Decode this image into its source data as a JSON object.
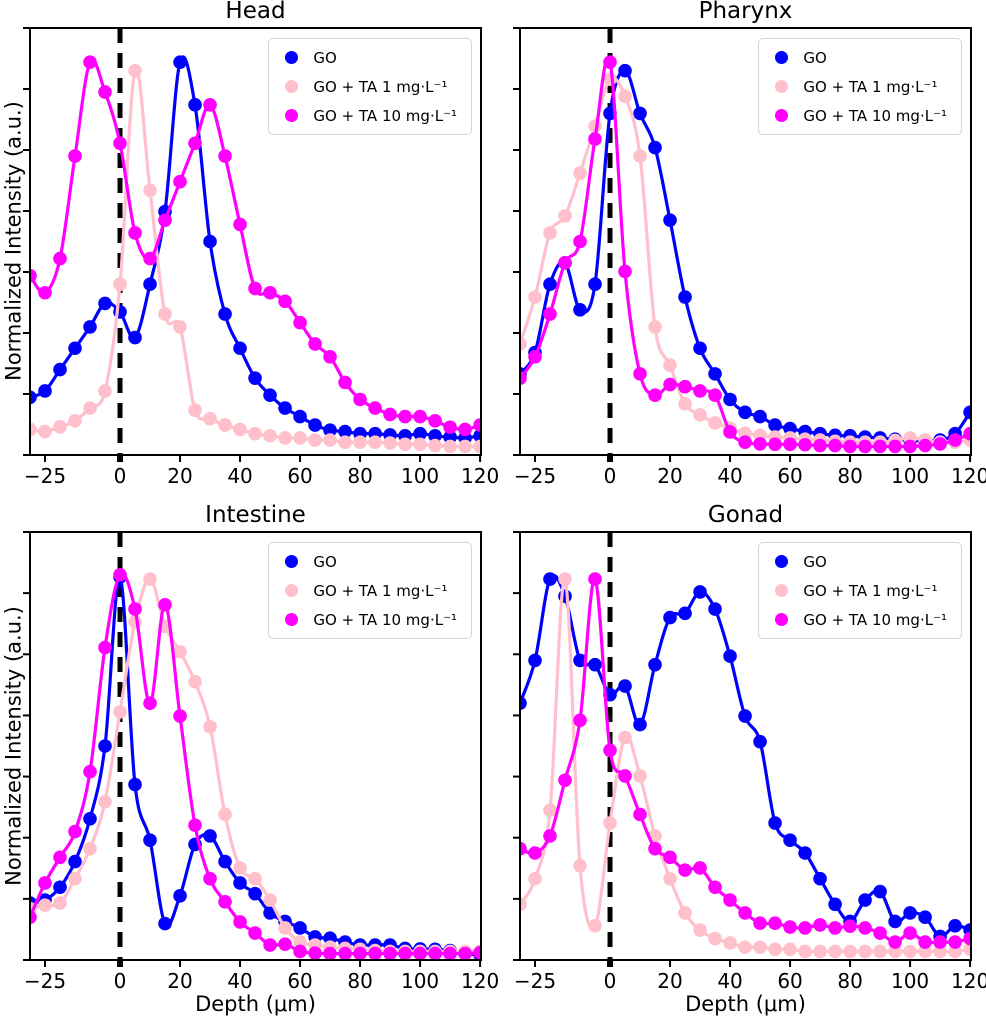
{
  "figure": {
    "description": "Four-panel depth profile figure",
    "background": "#ffffff"
  },
  "axes": {
    "xlabel": "Depth (μm)",
    "ylabel": "Normalized Intensity (a.u.)",
    "xlim": [
      -30,
      120.3
    ],
    "ylim": [
      0,
      1
    ],
    "x_ticks": [
      {
        "value": -25,
        "label": "−25"
      },
      {
        "value": 0,
        "label": "0"
      },
      {
        "value": 20,
        "label": "20"
      },
      {
        "value": 40,
        "label": "40"
      },
      {
        "value": 60,
        "label": "60"
      },
      {
        "value": 80,
        "label": "80"
      },
      {
        "value": 100,
        "label": "100"
      },
      {
        "value": 120,
        "label": "120"
      }
    ],
    "grid": false
  },
  "legend": {
    "position": "upper right",
    "items": [
      {
        "label": "GO",
        "color": "#0000FF"
      },
      {
        "label": "GO + TA 1 mg·L⁻¹",
        "color": "#FFC0CB"
      },
      {
        "label": "GO + TA 10 mg·L⁻¹",
        "color": "#FF00FF"
      }
    ]
  },
  "style": {
    "line_width": 3.2,
    "marker_radius": 6.8,
    "spine_color": "#000000",
    "vline": {
      "x": 0,
      "color": "#000000",
      "width": 5,
      "dash": [
        15,
        10
      ]
    }
  },
  "chart_data": [
    {
      "type": "line",
      "title": "Head",
      "vline_x": 0,
      "x": [
        -30,
        -25,
        -20,
        -15,
        -10,
        -5,
        0,
        5,
        10,
        15,
        20,
        25,
        30,
        35,
        40,
        45,
        50,
        55,
        60,
        65,
        70,
        75,
        80,
        85,
        90,
        95,
        100,
        105,
        110,
        115,
        120
      ],
      "series": [
        {
          "name": "GO",
          "color": "#0000FF",
          "values": [
            0.135,
            0.15,
            0.2,
            0.25,
            0.3,
            0.355,
            0.335,
            0.275,
            0.4,
            0.57,
            0.92,
            0.82,
            0.5,
            0.33,
            0.25,
            0.18,
            0.14,
            0.11,
            0.09,
            0.07,
            0.058,
            0.055,
            0.05,
            0.05,
            0.047,
            0.045,
            0.05,
            0.045,
            0.042,
            0.04,
            0.045
          ]
        },
        {
          "name": "GO + TA 1 mg·L⁻¹",
          "color": "#FFC0CB",
          "values": [
            0.06,
            0.055,
            0.066,
            0.08,
            0.11,
            0.15,
            0.4,
            0.9,
            0.62,
            0.33,
            0.3,
            0.105,
            0.085,
            0.07,
            0.06,
            0.05,
            0.045,
            0.04,
            0.04,
            0.035,
            0.035,
            0.03,
            0.03,
            0.03,
            0.028,
            0.025,
            0.025,
            0.022,
            0.02,
            0.02,
            0.02
          ]
        },
        {
          "name": "GO + TA 10 mg·L⁻¹",
          "color": "#FF00FF",
          "values": [
            0.42,
            0.38,
            0.46,
            0.7,
            0.92,
            0.85,
            0.73,
            0.52,
            0.46,
            0.55,
            0.64,
            0.73,
            0.82,
            0.7,
            0.54,
            0.39,
            0.38,
            0.36,
            0.31,
            0.26,
            0.23,
            0.17,
            0.13,
            0.11,
            0.095,
            0.09,
            0.09,
            0.08,
            0.065,
            0.06,
            0.07
          ]
        }
      ]
    },
    {
      "type": "line",
      "title": "Pharynx",
      "vline_x": 0,
      "x": [
        -30,
        -25,
        -20,
        -15,
        -10,
        -5,
        0,
        5,
        10,
        15,
        20,
        25,
        30,
        35,
        40,
        45,
        50,
        55,
        60,
        65,
        70,
        75,
        80,
        85,
        90,
        95,
        100,
        105,
        110,
        115,
        120
      ],
      "series": [
        {
          "name": "GO",
          "color": "#0000FF",
          "values": [
            0.19,
            0.24,
            0.4,
            0.45,
            0.34,
            0.4,
            0.8,
            0.9,
            0.8,
            0.72,
            0.55,
            0.37,
            0.25,
            0.19,
            0.13,
            0.1,
            0.09,
            0.07,
            0.062,
            0.055,
            0.05,
            0.046,
            0.045,
            0.042,
            0.04,
            0.037,
            0.035,
            0.033,
            0.035,
            0.05,
            0.1
          ]
        },
        {
          "name": "GO + TA 1 mg·L⁻¹",
          "color": "#FFC0CB",
          "values": [
            0.26,
            0.37,
            0.52,
            0.56,
            0.66,
            0.77,
            0.88,
            0.84,
            0.7,
            0.3,
            0.21,
            0.12,
            0.094,
            0.075,
            0.063,
            0.051,
            0.046,
            0.042,
            0.04,
            0.037,
            0.035,
            0.032,
            0.03,
            0.03,
            0.03,
            0.034,
            0.04,
            0.035,
            0.03,
            0.03,
            0.035
          ]
        },
        {
          "name": "GO + TA 10 mg·L⁻¹",
          "color": "#FF00FF",
          "values": [
            0.18,
            0.23,
            0.33,
            0.45,
            0.5,
            0.74,
            0.92,
            0.43,
            0.19,
            0.14,
            0.165,
            0.16,
            0.15,
            0.14,
            0.054,
            0.03,
            0.026,
            0.025,
            0.025,
            0.024,
            0.022,
            0.022,
            0.02,
            0.02,
            0.02,
            0.02,
            0.02,
            0.022,
            0.026,
            0.035,
            0.05
          ]
        }
      ]
    },
    {
      "type": "line",
      "title": "Intestine",
      "vline_x": 0,
      "x": [
        -30,
        -25,
        -20,
        -15,
        -10,
        -5,
        0,
        5,
        10,
        15,
        20,
        25,
        30,
        35,
        40,
        45,
        50,
        55,
        60,
        65,
        70,
        75,
        80,
        85,
        90,
        95,
        100,
        105,
        110,
        115,
        120
      ],
      "series": [
        {
          "name": "GO",
          "color": "#0000FF",
          "values": [
            0.133,
            0.14,
            0.17,
            0.23,
            0.33,
            0.5,
            0.895,
            0.41,
            0.28,
            0.085,
            0.15,
            0.27,
            0.29,
            0.23,
            0.18,
            0.155,
            0.11,
            0.09,
            0.075,
            0.054,
            0.051,
            0.042,
            0.035,
            0.035,
            0.035,
            0.027,
            0.026,
            0.025,
            0.022,
            0.015,
            0.012
          ]
        },
        {
          "name": "GO + TA 1 mg·L⁻¹",
          "color": "#FFC0CB",
          "values": [
            0.12,
            0.128,
            0.133,
            0.19,
            0.26,
            0.37,
            0.58,
            0.79,
            0.89,
            0.78,
            0.72,
            0.65,
            0.545,
            0.34,
            0.215,
            0.19,
            0.14,
            0.075,
            0.042,
            0.035,
            0.03,
            0.027,
            0.025,
            0.022,
            0.02,
            0.02,
            0.02,
            0.02,
            0.02,
            0.02,
            0.02
          ]
        },
        {
          "name": "GO + TA 10 mg·L⁻¹",
          "color": "#FF00FF",
          "values": [
            0.1,
            0.18,
            0.24,
            0.3,
            0.44,
            0.73,
            0.9,
            0.82,
            0.6,
            0.83,
            0.57,
            0.315,
            0.19,
            0.136,
            0.089,
            0.063,
            0.035,
            0.037,
            0.02,
            0.016,
            0.015,
            0.015,
            0.015,
            0.015,
            0.015,
            0.015,
            0.015,
            0.015,
            0.015,
            0.015,
            0.017
          ]
        }
      ]
    },
    {
      "type": "line",
      "title": "Gonad",
      "vline_x": 0,
      "x": [
        -30,
        -25,
        -20,
        -15,
        -10,
        -5,
        0,
        5,
        10,
        15,
        20,
        25,
        30,
        35,
        40,
        45,
        50,
        55,
        60,
        65,
        70,
        75,
        80,
        85,
        90,
        95,
        100,
        105,
        110,
        115,
        120
      ],
      "series": [
        {
          "name": "GO",
          "color": "#0000FF",
          "values": [
            0.6,
            0.7,
            0.89,
            0.85,
            0.7,
            0.69,
            0.62,
            0.64,
            0.55,
            0.69,
            0.8,
            0.81,
            0.86,
            0.82,
            0.71,
            0.57,
            0.51,
            0.32,
            0.28,
            0.25,
            0.19,
            0.13,
            0.09,
            0.14,
            0.16,
            0.09,
            0.11,
            0.1,
            0.055,
            0.08,
            0.07
          ]
        },
        {
          "name": "GO + TA 1 mg·L⁻¹",
          "color": "#FFC0CB",
          "values": [
            0.13,
            0.19,
            0.35,
            0.89,
            0.22,
            0.08,
            0.32,
            0.52,
            0.43,
            0.29,
            0.19,
            0.11,
            0.07,
            0.05,
            0.04,
            0.03,
            0.03,
            0.025,
            0.025,
            0.02,
            0.02,
            0.02,
            0.02,
            0.02,
            0.02,
            0.02,
            0.02,
            0.02,
            0.02,
            0.02,
            0.025
          ]
        },
        {
          "name": "GO + TA 10 mg·L⁻¹",
          "color": "#FF00FF",
          "values": [
            0.26,
            0.25,
            0.29,
            0.42,
            0.56,
            0.89,
            0.49,
            0.43,
            0.34,
            0.26,
            0.24,
            0.21,
            0.215,
            0.17,
            0.14,
            0.11,
            0.086,
            0.086,
            0.077,
            0.075,
            0.082,
            0.075,
            0.079,
            0.075,
            0.063,
            0.042,
            0.063,
            0.042,
            0.042,
            0.042,
            0.05
          ]
        }
      ]
    }
  ]
}
